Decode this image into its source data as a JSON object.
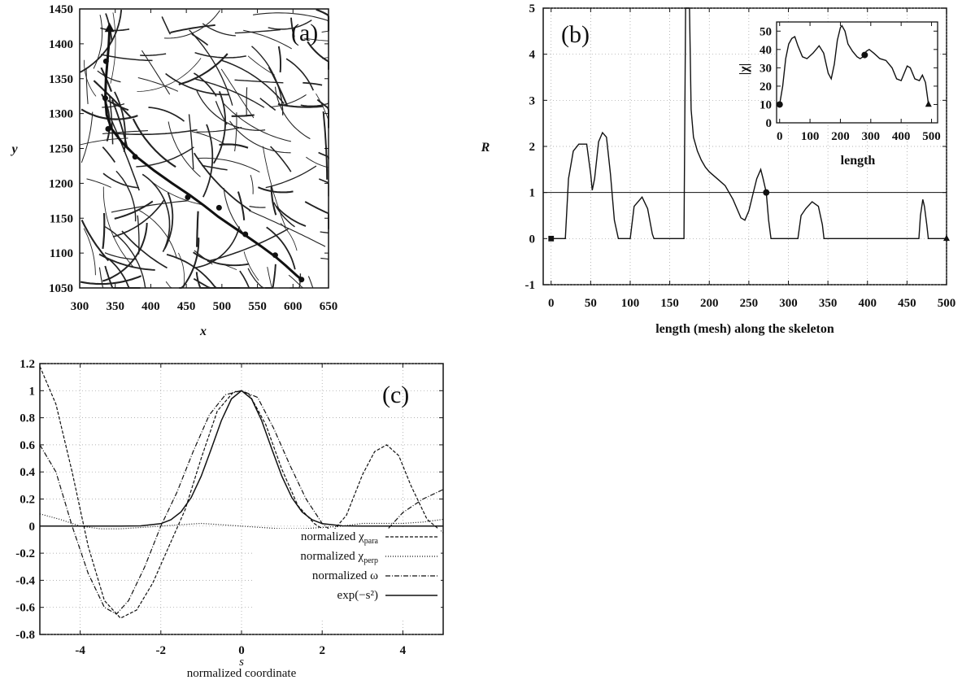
{
  "chart_data": [
    {
      "panel": "a",
      "type": "scatter",
      "panel_label": "(a)",
      "xlabel": "x",
      "ylabel": "y",
      "xlim": [
        300,
        650
      ],
      "ylim": [
        1050,
        1450
      ],
      "xticks": [
        "300",
        "350",
        "400",
        "450",
        "500",
        "550",
        "600",
        "650"
      ],
      "yticks": [
        "1050",
        "1100",
        "1150",
        "1200",
        "1250",
        "1300",
        "1350",
        "1400",
        "1450"
      ],
      "grid": false,
      "skeleton_path": {
        "x": [
          342,
          341,
          339,
          337,
          336,
          338,
          345,
          360,
          380,
          405,
          430,
          455,
          475,
          495,
          515,
          535,
          555,
          575,
          590,
          605,
          612
        ],
        "y": [
          1422,
          1400,
          1375,
          1350,
          1322,
          1298,
          1278,
          1258,
          1238,
          1218,
          1200,
          1183,
          1168,
          1152,
          1138,
          1124,
          1110,
          1095,
          1082,
          1068,
          1062
        ]
      },
      "markers": [
        {
          "shape": "triangle",
          "x": 342,
          "y": 1422
        },
        {
          "shape": "dot",
          "x": 337,
          "y": 1375
        },
        {
          "shape": "dot",
          "x": 336,
          "y": 1322
        },
        {
          "shape": "dot",
          "x": 340,
          "y": 1278
        },
        {
          "shape": "dot",
          "x": 378,
          "y": 1238
        },
        {
          "shape": "dot",
          "x": 452,
          "y": 1180
        },
        {
          "shape": "dot",
          "x": 496,
          "y": 1165
        },
        {
          "shape": "dot",
          "x": 533,
          "y": 1127
        },
        {
          "shape": "dot",
          "x": 575,
          "y": 1097
        },
        {
          "shape": "dot",
          "x": 612,
          "y": 1062
        }
      ]
    },
    {
      "panel": "b",
      "type": "line",
      "panel_label": "(b)",
      "xlabel": "length (mesh) along the skeleton",
      "ylabel": "R",
      "xlim": [
        -10,
        500
      ],
      "ylim": [
        -1,
        5
      ],
      "xticks": [
        "0",
        "50",
        "100",
        "150",
        "200",
        "250",
        "300",
        "350",
        "400",
        "450",
        "500"
      ],
      "yticks": [
        "-1",
        "0",
        "1",
        "2",
        "3",
        "4",
        "5"
      ],
      "grid": true,
      "reference_line_y": 1,
      "series": [
        {
          "x": [
            0,
            18,
            22,
            28,
            35,
            45,
            50,
            52,
            55,
            60,
            65,
            70,
            75,
            80,
            85,
            100,
            105,
            115,
            122,
            128,
            130,
            168,
            170,
            175,
            177,
            180,
            185,
            190,
            195,
            200,
            210,
            220,
            230,
            240,
            245,
            250,
            255,
            260,
            265,
            268,
            272,
            275,
            278,
            312,
            316,
            322,
            330,
            338,
            343,
            345,
            465,
            467,
            470,
            472,
            475,
            477,
            500
          ],
          "y": [
            0,
            0,
            1.3,
            1.9,
            2.05,
            2.05,
            1.4,
            1.05,
            1.3,
            2.1,
            2.3,
            2.2,
            1.4,
            0.4,
            0,
            0,
            0.7,
            0.9,
            0.65,
            0.1,
            0,
            0,
            5,
            5,
            2.8,
            2.2,
            1.9,
            1.7,
            1.55,
            1.45,
            1.3,
            1.15,
            0.85,
            0.45,
            0.4,
            0.6,
            0.95,
            1.3,
            1.5,
            1.3,
            1.0,
            0.4,
            0,
            0,
            0.5,
            0.65,
            0.8,
            0.7,
            0.3,
            0,
            0,
            0.5,
            0.85,
            0.7,
            0.3,
            0,
            0
          ]
        }
      ],
      "markers": [
        {
          "shape": "square",
          "x": 0,
          "y": 0
        },
        {
          "shape": "dot",
          "x": 272,
          "y": 1
        },
        {
          "shape": "triangle",
          "x": 500,
          "y": 0
        }
      ]
    },
    {
      "panel": "b-inset",
      "type": "line",
      "xlabel": "length",
      "ylabel": "|χ|",
      "xlim": [
        -10,
        520
      ],
      "ylim": [
        0,
        55
      ],
      "xticks": [
        "0",
        "100",
        "200",
        "300",
        "400",
        "500"
      ],
      "yticks": [
        "0",
        "10",
        "20",
        "30",
        "40",
        "50"
      ],
      "grid": false,
      "series": [
        {
          "x": [
            0,
            10,
            20,
            30,
            40,
            50,
            60,
            75,
            90,
            110,
            130,
            145,
            160,
            170,
            180,
            190,
            200,
            205,
            215,
            225,
            240,
            255,
            265,
            275,
            285,
            295,
            310,
            330,
            350,
            370,
            385,
            400,
            410,
            420,
            430,
            445,
            460,
            470,
            480,
            490
          ],
          "y": [
            10,
            20,
            35,
            43,
            46,
            47,
            42,
            36,
            35,
            38,
            42,
            38,
            27,
            24,
            32,
            45,
            52,
            53,
            50,
            43,
            39,
            36,
            35,
            36,
            39,
            40,
            38,
            35,
            34,
            30,
            24,
            23,
            27,
            31,
            30,
            24,
            23,
            26,
            22,
            10
          ]
        }
      ],
      "markers": [
        {
          "shape": "dot",
          "x": 0,
          "y": 10
        },
        {
          "shape": "dot",
          "x": 280,
          "y": 37
        },
        {
          "shape": "triangle",
          "x": 490,
          "y": 10
        }
      ]
    },
    {
      "panel": "c",
      "type": "line",
      "panel_label": "(c)",
      "xlabel_symbol": "s",
      "xlabel": "normalized coordinate",
      "xlim": [
        -5,
        5
      ],
      "ylim": [
        -0.8,
        1.2
      ],
      "xticks": [
        "-4",
        "-2",
        "0",
        "2",
        "4"
      ],
      "yticks": [
        "-0.8",
        "-0.6",
        "-0.4",
        "-0.2",
        "0",
        "0.2",
        "0.4",
        "0.6",
        "0.8",
        "1",
        "1.2"
      ],
      "grid": true,
      "legend_position": "bottom-right",
      "series": [
        {
          "name": "normalized χ",
          "sub": "para",
          "style": "dashed",
          "x": [
            -5,
            -4.6,
            -4.2,
            -3.8,
            -3.4,
            -3.0,
            -2.6,
            -2.2,
            -1.8,
            -1.4,
            -1.0,
            -0.6,
            -0.2,
            0,
            0.2,
            0.6,
            1.0,
            1.4,
            1.8,
            2.2,
            2.6,
            3.0,
            3.3,
            3.6,
            3.9,
            4.2,
            4.6,
            5
          ],
          "y": [
            1.18,
            0.9,
            0.4,
            -0.15,
            -0.55,
            -0.68,
            -0.62,
            -0.42,
            -0.15,
            0.12,
            0.5,
            0.85,
            0.99,
            1.0,
            0.97,
            0.75,
            0.42,
            0.15,
            0.02,
            -0.06,
            0.08,
            0.38,
            0.55,
            0.6,
            0.52,
            0.3,
            0.05,
            -0.05
          ]
        },
        {
          "name": "normalized χ",
          "sub": "perp",
          "style": "dotted",
          "x": [
            -5,
            -4.5,
            -4.0,
            -3.5,
            -3.0,
            -2.5,
            -2.0,
            -1.5,
            -1.0,
            -0.5,
            0,
            0.5,
            1.0,
            1.5,
            2.0,
            2.5,
            3.0,
            3.5,
            4.0,
            4.5,
            5
          ],
          "y": [
            0.09,
            0.05,
            0.0,
            -0.02,
            -0.02,
            -0.01,
            0.0,
            0.01,
            0.02,
            0.01,
            0.0,
            -0.01,
            -0.02,
            -0.02,
            -0.01,
            0.0,
            0.02,
            0.02,
            0.02,
            0.03,
            0.05
          ]
        },
        {
          "name": "normalized ω",
          "style": "dash-dot",
          "x": [
            -5,
            -4.6,
            -4.2,
            -3.8,
            -3.4,
            -3.1,
            -2.8,
            -2.4,
            -2.0,
            -1.6,
            -1.2,
            -0.8,
            -0.4,
            0,
            0.4,
            0.8,
            1.2,
            1.6,
            2.0,
            2.4,
            2.8,
            3.2,
            3.6,
            4.0,
            4.5,
            5
          ],
          "y": [
            0.6,
            0.4,
            0.0,
            -0.35,
            -0.6,
            -0.65,
            -0.55,
            -0.3,
            0.0,
            0.25,
            0.55,
            0.82,
            0.97,
            1.0,
            0.95,
            0.72,
            0.45,
            0.2,
            0.02,
            -0.08,
            -0.12,
            -0.12,
            -0.03,
            0.1,
            0.2,
            0.27
          ]
        },
        {
          "name": "exp(−s²)",
          "style": "solid",
          "x": [
            -5,
            -3,
            -2.5,
            -2,
            -1.75,
            -1.5,
            -1.25,
            -1,
            -0.75,
            -0.5,
            -0.25,
            0,
            0.25,
            0.5,
            0.75,
            1,
            1.25,
            1.5,
            1.75,
            2,
            2.5,
            3,
            5
          ],
          "y": [
            0,
            0.0001,
            0.0019,
            0.0183,
            0.0468,
            0.1054,
            0.2096,
            0.3679,
            0.5698,
            0.7788,
            0.9394,
            1.0,
            0.9394,
            0.7788,
            0.5698,
            0.3679,
            0.2096,
            0.1054,
            0.0468,
            0.0183,
            0.0019,
            0.0001,
            0
          ]
        }
      ]
    }
  ]
}
